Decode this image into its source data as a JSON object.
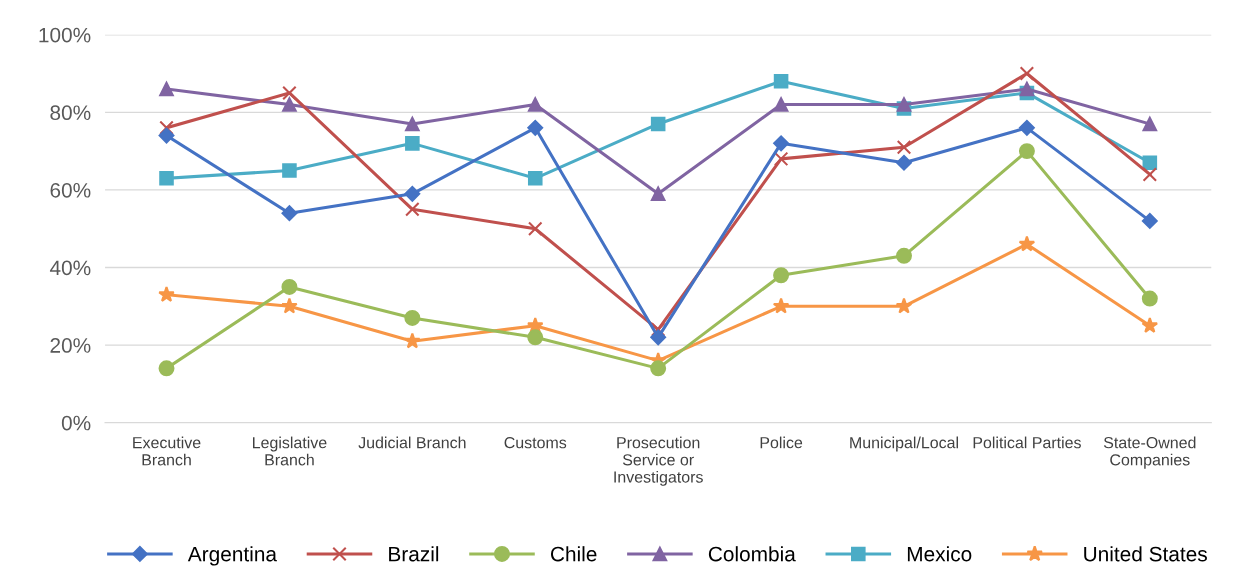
{
  "chart_data": {
    "type": "line",
    "categories": [
      "Executive\nBranch",
      "Legislative\nBranch",
      "Judicial Branch",
      "Customs",
      "Prosecution\nService or\nInvestigators",
      "Police",
      "Municipal/Local",
      "Political Parties",
      "State-Owned\nCompanies"
    ],
    "series": [
      {
        "name": "Argentina",
        "color": "#4472c4",
        "marker": "diamond",
        "values": [
          74,
          54,
          59,
          76,
          22,
          72,
          67,
          76,
          52
        ]
      },
      {
        "name": "Brazil",
        "color": "#c0504d",
        "marker": "cross",
        "values": [
          76,
          85,
          55,
          50,
          24,
          68,
          71,
          90,
          64
        ]
      },
      {
        "name": "Chile",
        "color": "#9bbb59",
        "marker": "circle",
        "values": [
          14,
          35,
          27,
          22,
          14,
          38,
          43,
          70,
          32
        ]
      },
      {
        "name": "Colombia",
        "color": "#8064a2",
        "marker": "triangle",
        "values": [
          86,
          82,
          77,
          82,
          59,
          82,
          82,
          86,
          77
        ]
      },
      {
        "name": "Mexico",
        "color": "#4bacc6",
        "marker": "square",
        "values": [
          63,
          65,
          72,
          63,
          77,
          88,
          81,
          85,
          67
        ]
      },
      {
        "name": "United States",
        "color": "#f79646",
        "marker": "star",
        "values": [
          33,
          30,
          21,
          25,
          16,
          30,
          30,
          46,
          25
        ]
      }
    ],
    "ylim": [
      0,
      100
    ],
    "yticks": [
      {
        "value": 0,
        "label": "0%"
      },
      {
        "value": 20,
        "label": "20%"
      },
      {
        "value": 40,
        "label": "40%"
      },
      {
        "value": 60,
        "label": "60%"
      },
      {
        "value": 80,
        "label": "80%"
      },
      {
        "value": 100,
        "label": "100%"
      }
    ],
    "grid": "y",
    "legend": "bottom",
    "line_style": "solid"
  }
}
